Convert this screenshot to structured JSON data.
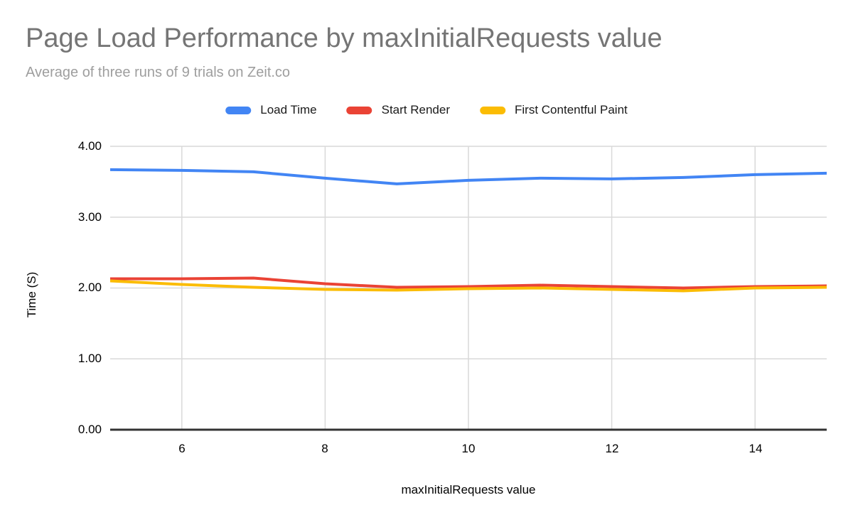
{
  "header": {
    "title": "Page Load Performance by maxInitialRequests value",
    "subtitle": "Average of three runs of 9 trials on Zeit.co"
  },
  "colors": {
    "series_blue": "#4285f4",
    "series_red": "#ea4335",
    "series_yellow": "#fbbc04",
    "gridline": "#d9d9d9",
    "axis_line": "#333333",
    "title_text": "#757575",
    "subtitle_text": "#9e9e9e",
    "tick_text": "#000000"
  },
  "chart_data": {
    "type": "line",
    "title": "Page Load Performance by maxInitialRequests value",
    "subtitle": "Average of three runs of 9 trials on Zeit.co",
    "xlabel": "maxInitialRequests value",
    "ylabel": "Time (S)",
    "x": [
      5,
      6,
      7,
      8,
      9,
      10,
      11,
      12,
      13,
      14,
      15
    ],
    "series": [
      {
        "name": "Load Time",
        "color": "#4285f4",
        "values": [
          3.67,
          3.66,
          3.64,
          3.55,
          3.47,
          3.52,
          3.55,
          3.54,
          3.56,
          3.6,
          3.62
        ]
      },
      {
        "name": "Start Render",
        "color": "#ea4335",
        "values": [
          2.13,
          2.13,
          2.14,
          2.06,
          2.01,
          2.02,
          2.04,
          2.02,
          2.0,
          2.02,
          2.03
        ]
      },
      {
        "name": "First Contentful Paint",
        "color": "#fbbc04",
        "values": [
          2.1,
          2.05,
          2.01,
          1.98,
          1.97,
          1.99,
          2.0,
          1.98,
          1.96,
          2.0,
          2.01
        ]
      }
    ],
    "xticks": [
      "6",
      "8",
      "10",
      "12",
      "14"
    ],
    "xtick_values": [
      6,
      8,
      10,
      12,
      14
    ],
    "yticks": [
      "4.00",
      "3.00",
      "2.00",
      "1.00",
      "0.00"
    ],
    "ytick_values": [
      4,
      3,
      2,
      1,
      0
    ],
    "xlim": [
      5,
      15
    ],
    "ylim": [
      0,
      4
    ],
    "grid": true,
    "legend_position": "top"
  }
}
